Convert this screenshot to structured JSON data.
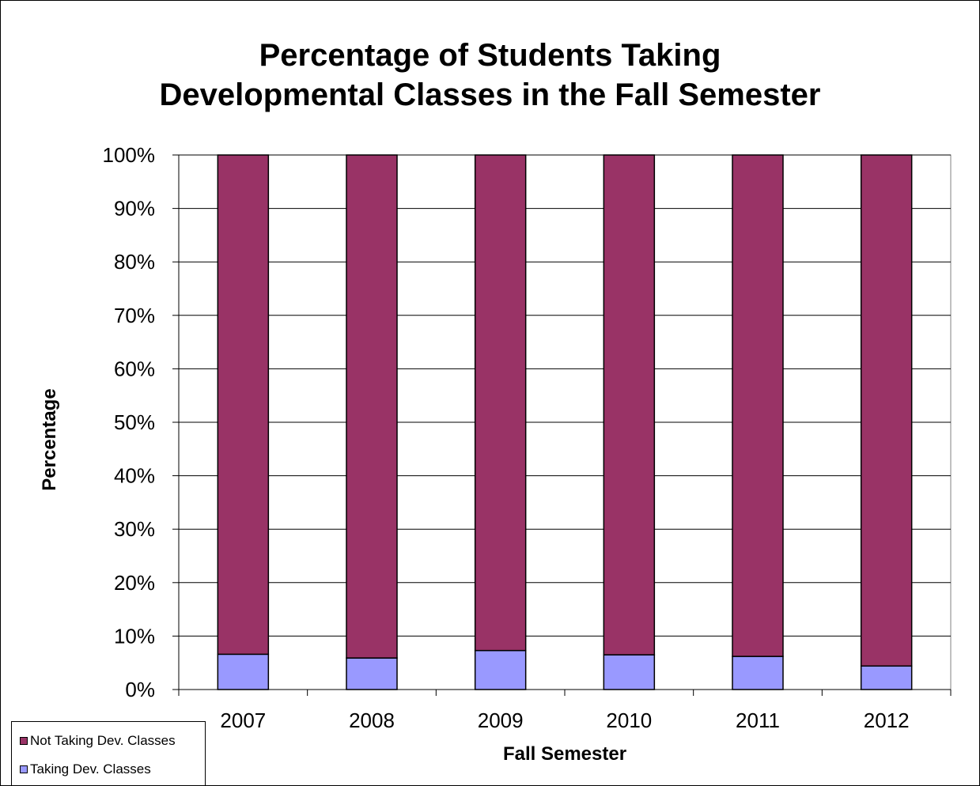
{
  "chart_data": {
    "type": "bar",
    "stacked": true,
    "percent_stacked": true,
    "title": "Percentage of Students Taking Developmental Classes in the Fall Semester",
    "title_lines": [
      "Percentage of Students Taking",
      "Developmental Classes in the Fall Semester"
    ],
    "xlabel": "Fall Semester",
    "ylabel": "Percentage",
    "categories": [
      "2007",
      "2008",
      "2009",
      "2010",
      "2011",
      "2012"
    ],
    "y_ticks": [
      "0%",
      "10%",
      "20%",
      "30%",
      "40%",
      "50%",
      "60%",
      "70%",
      "80%",
      "90%",
      "100%"
    ],
    "ylim": [
      0,
      100
    ],
    "grid": true,
    "legend_position": "bottom-left",
    "series": [
      {
        "name": "Taking Dev. Classes",
        "values": [
          6.6,
          5.9,
          7.3,
          6.5,
          6.2,
          4.4
        ],
        "color": "#9999ff"
      },
      {
        "name": "Not Taking Dev. Classes",
        "values": [
          93.4,
          94.1,
          92.7,
          93.5,
          93.8,
          95.6
        ],
        "color": "#993366"
      }
    ]
  }
}
